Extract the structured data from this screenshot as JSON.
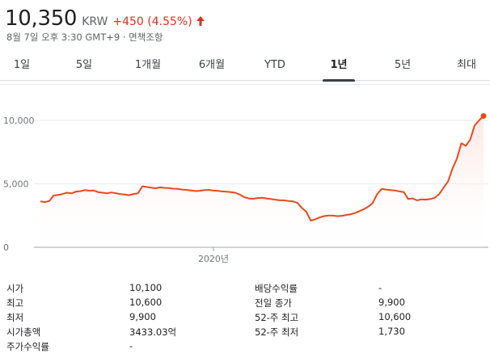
{
  "quote": {
    "price": "10,350",
    "currency": "KRW",
    "change": "+450 (4.55%)",
    "change_color": "#d93025",
    "direction_icon": "arrow-up-icon",
    "timestamp": "8월 7일 오후 3:30 GMT+9 · 면책조항"
  },
  "tabs": [
    {
      "label": "1일",
      "active": false
    },
    {
      "label": "5일",
      "active": false
    },
    {
      "label": "1개월",
      "active": false
    },
    {
      "label": "6개월",
      "active": false
    },
    {
      "label": "YTD",
      "active": false
    },
    {
      "label": "1년",
      "active": true
    },
    {
      "label": "5년",
      "active": false
    },
    {
      "label": "최대",
      "active": false
    }
  ],
  "chart_data": {
    "type": "line",
    "series": [
      {
        "values": [
          3620,
          3560,
          3650,
          4080,
          4120,
          4200,
          4300,
          4250,
          4380,
          4420,
          4500,
          4460,
          4480,
          4350,
          4300,
          4250,
          4320,
          4260,
          4200,
          4150,
          4100,
          4200,
          4250,
          4800,
          4750,
          4700,
          4650,
          4720,
          4680,
          4660,
          4620,
          4600,
          4550,
          4520,
          4480,
          4430,
          4450,
          4500,
          4520,
          4480,
          4450,
          4400,
          4380,
          4350,
          4300,
          4150,
          3950,
          3850,
          3820,
          3880,
          3900,
          3850,
          3800,
          3750,
          3700,
          3700,
          3650,
          3620,
          3500,
          3100,
          2800,
          2100,
          2200,
          2350,
          2450,
          2500,
          2500,
          2450,
          2480,
          2550,
          2600,
          2700,
          2850,
          3000,
          3200,
          3500,
          4200,
          4600,
          4550,
          4500,
          4480,
          4400,
          4350,
          3800,
          3850,
          3700,
          3780,
          3750,
          3800,
          3900,
          4200,
          4700,
          5200,
          6200,
          7000,
          8200,
          8000,
          8500,
          9600,
          10000,
          10350
        ]
      }
    ],
    "x_tick_labels": [
      "2020년"
    ],
    "y_tick_labels": [
      "10,000",
      "5,000",
      "0"
    ],
    "y_ticks": [
      10000,
      5000,
      0
    ],
    "ylim": [
      0,
      12000
    ],
    "line_color": "#e8491d",
    "fill_color": "#fde7e3",
    "grid": true
  },
  "stats": {
    "left": [
      {
        "label": "시가",
        "value": "10,100"
      },
      {
        "label": "최고",
        "value": "10,600"
      },
      {
        "label": "최저",
        "value": "9,900"
      },
      {
        "label": "시가총액",
        "value": "3433.03억"
      },
      {
        "label": "주가수익률",
        "value": "-"
      }
    ],
    "right": [
      {
        "label": "배당수익률",
        "value": "-"
      },
      {
        "label": "전일 종가",
        "value": "9,900"
      },
      {
        "label": "52-주 최고",
        "value": "10,600"
      },
      {
        "label": "52-주 최저",
        "value": "1,730"
      }
    ]
  }
}
